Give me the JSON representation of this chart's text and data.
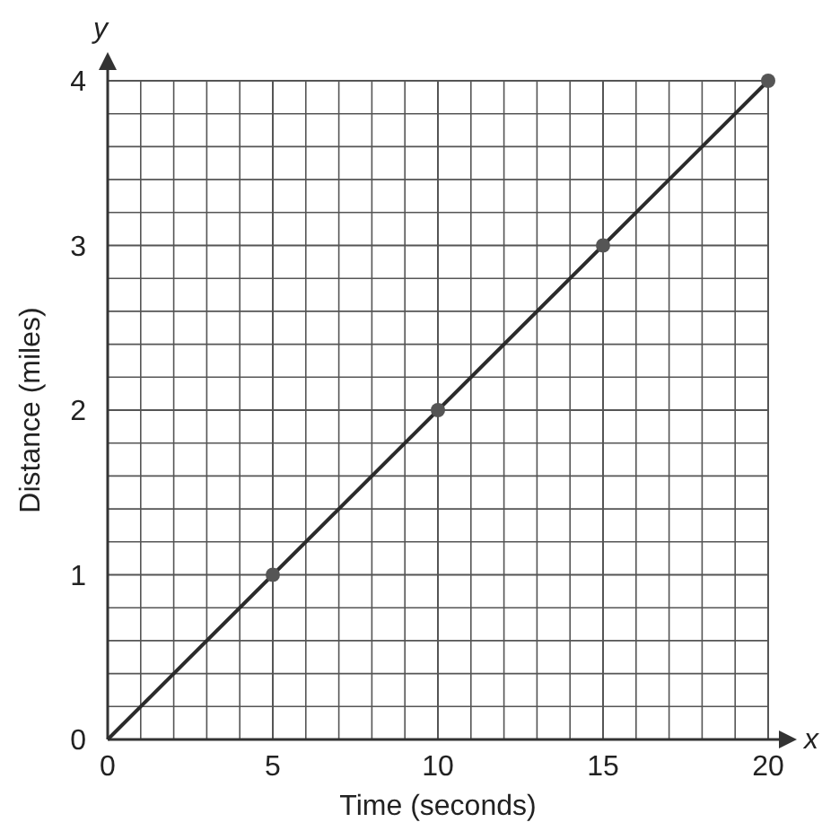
{
  "chart_data": {
    "type": "line",
    "xlabel": "Time (seconds)",
    "ylabel": "Distance (miles)",
    "annotations": [
      "x",
      "y"
    ],
    "xlim": [
      0,
      20
    ],
    "ylim": [
      0,
      4
    ],
    "xticks": [
      0,
      {
        "value": 1,
        "label": null
      },
      {
        "value": 2,
        "label": null
      },
      {
        "value": 3,
        "label": null
      },
      {
        "value": 4,
        "label": null
      },
      5,
      {
        "value": 6,
        "label": null
      },
      {
        "value": 7,
        "label": null
      },
      {
        "value": 8,
        "label": null
      },
      {
        "value": 9,
        "label": null
      },
      10,
      {
        "value": 11,
        "label": null
      },
      {
        "value": 12,
        "label": null
      },
      {
        "value": 13,
        "label": null
      },
      {
        "value": 14,
        "label": null
      },
      15,
      {
        "value": 16,
        "label": null
      },
      {
        "value": 17,
        "label": null
      },
      {
        "value": 18,
        "label": null
      },
      {
        "value": 19,
        "label": null
      },
      20
    ],
    "yticks": [
      0,
      {
        "value": 0.2,
        "label": null
      },
      {
        "value": 0.4,
        "label": null
      },
      {
        "value": 0.6,
        "label": null
      },
      {
        "value": 0.8,
        "label": null
      },
      1,
      {
        "value": 1.2,
        "label": null
      },
      {
        "value": 1.4,
        "label": null
      },
      {
        "value": 1.6,
        "label": null
      },
      {
        "value": 1.8,
        "label": null
      },
      2,
      {
        "value": 2.2,
        "label": null
      },
      {
        "value": 2.4,
        "label": null
      },
      {
        "value": 2.6,
        "label": null
      },
      {
        "value": 2.8,
        "label": null
      },
      3,
      {
        "value": 3.2,
        "label": null
      },
      {
        "value": 3.4,
        "label": null
      },
      {
        "value": 3.6,
        "label": null
      },
      {
        "value": 3.8,
        "label": null
      },
      4
    ],
    "grid": true,
    "series": [
      {
        "color": "#2b2b2b",
        "x": [
          0,
          20
        ],
        "values": [
          0,
          4
        ],
        "marker": "none",
        "line_style": "solid"
      },
      {
        "type": "scatter",
        "color": "#555555",
        "x": [
          5,
          10,
          15,
          20
        ],
        "values": [
          1,
          2,
          3,
          4
        ],
        "marker": "circle"
      }
    ]
  }
}
